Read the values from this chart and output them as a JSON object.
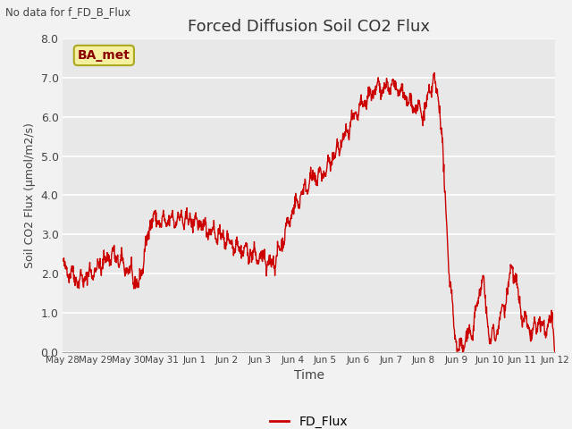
{
  "title": "Forced Diffusion Soil CO2 Flux",
  "xlabel": "Time",
  "ylabel": "Soil CO2 Flux (μmol/m2/s)",
  "no_data_text": "No data for f_FD_B_Flux",
  "legend_label": "FD_Flux",
  "annotation_label": "BA_met",
  "line_color": "#cc0000",
  "background_color": "#e8e8e8",
  "figure_bg": "#f2f2f2",
  "ylim": [
    0.0,
    8.0
  ],
  "yticks": [
    0.0,
    1.0,
    2.0,
    3.0,
    4.0,
    5.0,
    6.0,
    7.0,
    8.0
  ],
  "xtick_labels": [
    "May 28",
    "May 29",
    "May 30",
    "May 31",
    "Jun 1",
    "Jun 2",
    "Jun 3",
    "Jun 4",
    "Jun 5",
    "Jun 6",
    "Jun 7",
    "Jun 8",
    "Jun 9",
    "Jun 10",
    "Jun 11",
    "Jun 12"
  ],
  "num_points": 1500
}
